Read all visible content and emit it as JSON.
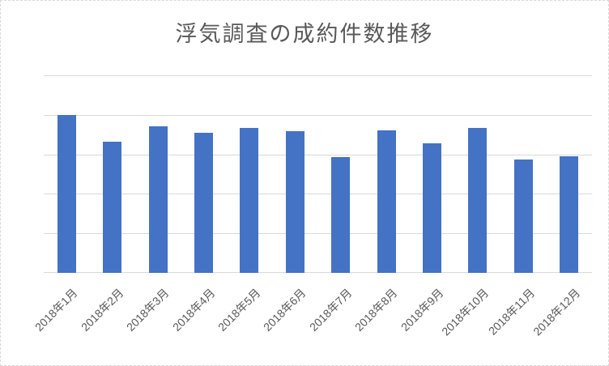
{
  "chart_data": {
    "type": "bar",
    "title": "浮気調査の成約件数推移",
    "categories": [
      "2018年1月",
      "2018年2月",
      "2018年3月",
      "2018年4月",
      "2018年5月",
      "2018年6月",
      "2018年7月",
      "2018年8月",
      "2018年9月",
      "2018年10月",
      "2018年11月",
      "2018年12月"
    ],
    "values": [
      40,
      33.1,
      37.1,
      35.4,
      36.7,
      35.8,
      29.3,
      36,
      32.8,
      36.7,
      28.6,
      29.5
    ],
    "xlabel": "",
    "ylabel": "",
    "ylim": [
      0,
      50
    ],
    "grid_step": 10,
    "y_axis_labels_visible": false,
    "x_label_rotation_deg": 45,
    "legend": "none",
    "grid": "horizontal",
    "colors": {
      "bar": "#4472C4",
      "gridline": "#D9D9D9",
      "axis_line": "#D9D9D9",
      "text": "#595959",
      "chart_border": "#D9D9D9",
      "background": "#FFFFFF"
    }
  }
}
